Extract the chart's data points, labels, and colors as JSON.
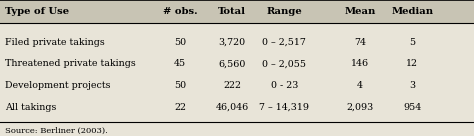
{
  "columns": [
    "Type of Use",
    "# obs.",
    "Total",
    "Range",
    "Mean",
    "Median"
  ],
  "rows": [
    [
      "Filed private takings",
      "50",
      "3,720",
      "0 – 2,517",
      "74",
      "5"
    ],
    [
      "Threatened private takings",
      "45",
      "6,560",
      "0 – 2,055",
      "146",
      "12"
    ],
    [
      "Development projects",
      "50",
      "222",
      "0 - 23",
      "4",
      "3"
    ],
    [
      "All takings",
      "22",
      "46,046",
      "7 – 14,319",
      "2,093",
      "954"
    ]
  ],
  "source": "Source: Berliner (2003).",
  "bg_color": "#e8e4d8",
  "header_bg": "#c8c4b4",
  "figsize": [
    4.74,
    1.36
  ],
  "dpi": 100
}
